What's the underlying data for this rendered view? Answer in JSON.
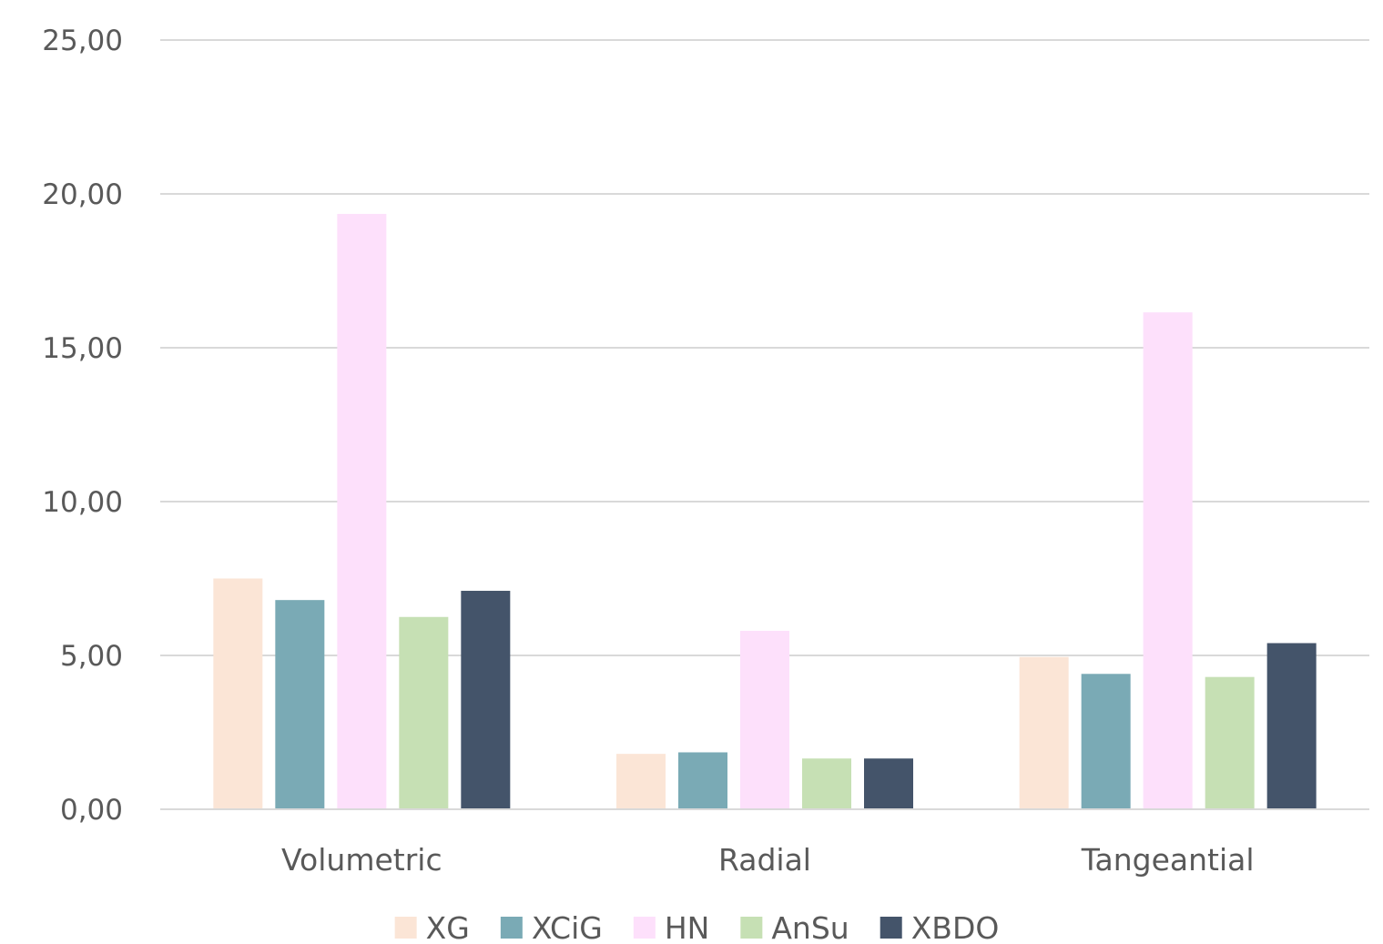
{
  "chart_data": {
    "type": "bar",
    "title": "",
    "xlabel": "",
    "ylabel": "",
    "categories": [
      "Volumetric",
      "Radial",
      "Tangeantial"
    ],
    "ylim": [
      0,
      25
    ],
    "yticks": [
      0,
      5,
      10,
      15,
      20,
      25
    ],
    "ytick_labels": [
      "0,00",
      "5,00",
      "10,00",
      "15,00",
      "20,00",
      "25,00"
    ],
    "grid": true,
    "legend_position": "bottom",
    "series": [
      {
        "name": "XG",
        "color": "#fbe5d6",
        "values": [
          7.5,
          1.8,
          4.95
        ]
      },
      {
        "name": "XCiG",
        "color": "#7aaab5",
        "values": [
          6.8,
          1.85,
          4.4
        ]
      },
      {
        "name": "HN",
        "color": "#fde0fb",
        "values": [
          19.35,
          5.8,
          16.15
        ]
      },
      {
        "name": "AnSu",
        "color": "#c6e0b4",
        "values": [
          6.25,
          1.65,
          4.3
        ]
      },
      {
        "name": "XBDO",
        "color": "#44546a",
        "values": [
          7.1,
          1.65,
          5.4
        ]
      }
    ]
  }
}
